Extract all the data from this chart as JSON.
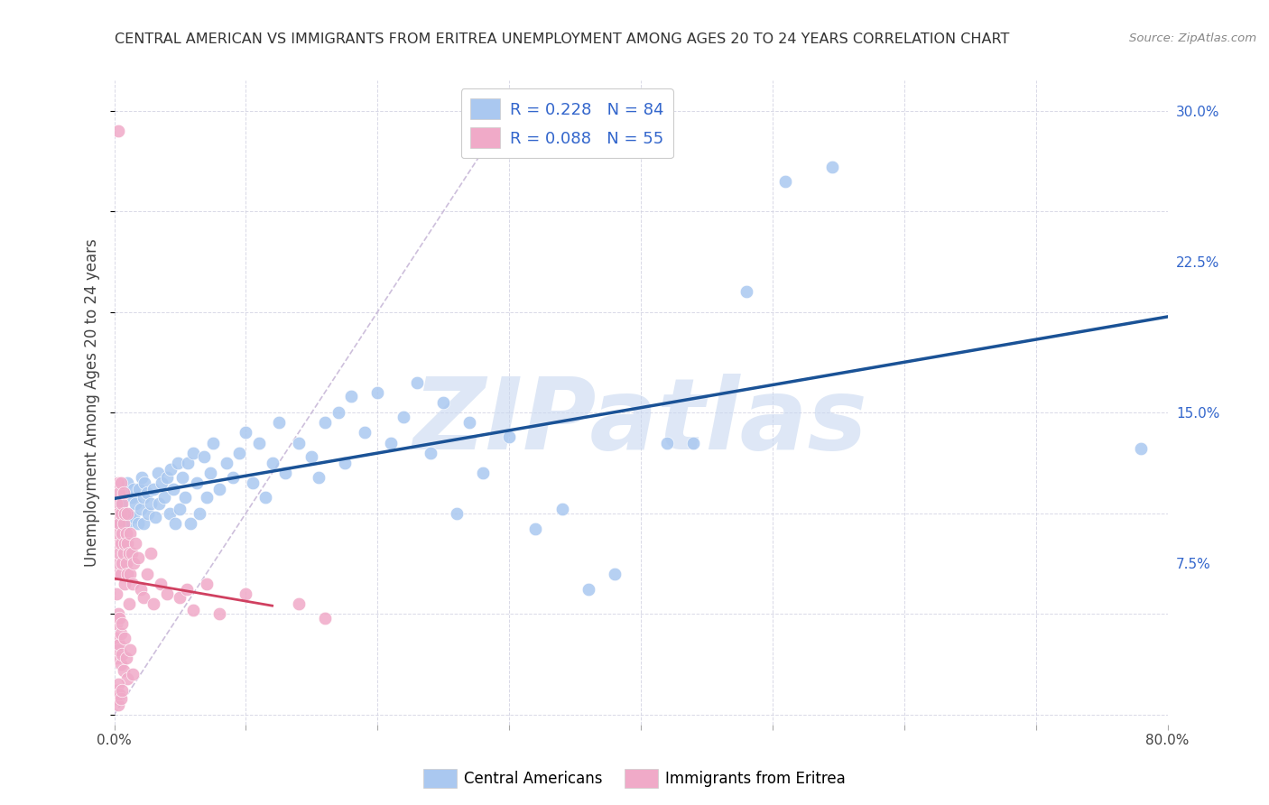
{
  "title": "CENTRAL AMERICAN VS IMMIGRANTS FROM ERITREA UNEMPLOYMENT AMONG AGES 20 TO 24 YEARS CORRELATION CHART",
  "source": "Source: ZipAtlas.com",
  "ylabel": "Unemployment Among Ages 20 to 24 years",
  "xlim": [
    0.0,
    0.8
  ],
  "ylim": [
    -0.005,
    0.315
  ],
  "blue_R": 0.228,
  "blue_N": 84,
  "pink_R": 0.088,
  "pink_N": 55,
  "blue_color": "#aac8f0",
  "pink_color": "#f0aac8",
  "blue_line_color": "#1a5296",
  "pink_line_color": "#d04060",
  "dashed_line_color": "#c8b8d8",
  "watermark": "ZIPatlas",
  "watermark_color": "#c8d8f0",
  "blue_scatter_x": [
    0.003,
    0.005,
    0.007,
    0.008,
    0.01,
    0.01,
    0.012,
    0.013,
    0.015,
    0.015,
    0.016,
    0.018,
    0.019,
    0.02,
    0.021,
    0.022,
    0.022,
    0.023,
    0.025,
    0.026,
    0.028,
    0.03,
    0.031,
    0.033,
    0.034,
    0.036,
    0.038,
    0.04,
    0.042,
    0.043,
    0.045,
    0.046,
    0.048,
    0.05,
    0.052,
    0.054,
    0.056,
    0.058,
    0.06,
    0.063,
    0.065,
    0.068,
    0.07,
    0.073,
    0.075,
    0.08,
    0.085,
    0.09,
    0.095,
    0.1,
    0.105,
    0.11,
    0.115,
    0.12,
    0.125,
    0.13,
    0.14,
    0.15,
    0.155,
    0.16,
    0.17,
    0.175,
    0.18,
    0.19,
    0.2,
    0.21,
    0.22,
    0.23,
    0.24,
    0.25,
    0.26,
    0.27,
    0.28,
    0.3,
    0.32,
    0.34,
    0.36,
    0.38,
    0.42,
    0.44,
    0.48,
    0.51,
    0.545,
    0.78
  ],
  "blue_scatter_y": [
    0.095,
    0.105,
    0.1,
    0.11,
    0.095,
    0.115,
    0.1,
    0.108,
    0.098,
    0.112,
    0.105,
    0.095,
    0.112,
    0.102,
    0.118,
    0.095,
    0.108,
    0.115,
    0.11,
    0.1,
    0.105,
    0.112,
    0.098,
    0.12,
    0.105,
    0.115,
    0.108,
    0.118,
    0.1,
    0.122,
    0.112,
    0.095,
    0.125,
    0.102,
    0.118,
    0.108,
    0.125,
    0.095,
    0.13,
    0.115,
    0.1,
    0.128,
    0.108,
    0.12,
    0.135,
    0.112,
    0.125,
    0.118,
    0.13,
    0.14,
    0.115,
    0.135,
    0.108,
    0.125,
    0.145,
    0.12,
    0.135,
    0.128,
    0.118,
    0.145,
    0.15,
    0.125,
    0.158,
    0.14,
    0.16,
    0.135,
    0.148,
    0.165,
    0.13,
    0.155,
    0.1,
    0.145,
    0.12,
    0.138,
    0.092,
    0.102,
    0.062,
    0.07,
    0.135,
    0.135,
    0.21,
    0.265,
    0.272,
    0.132
  ],
  "pink_scatter_x": [
    0.001,
    0.001,
    0.002,
    0.002,
    0.002,
    0.003,
    0.003,
    0.003,
    0.003,
    0.004,
    0.004,
    0.004,
    0.005,
    0.005,
    0.005,
    0.005,
    0.006,
    0.006,
    0.006,
    0.007,
    0.007,
    0.007,
    0.008,
    0.008,
    0.008,
    0.009,
    0.009,
    0.01,
    0.01,
    0.01,
    0.011,
    0.011,
    0.012,
    0.012,
    0.013,
    0.014,
    0.015,
    0.016,
    0.018,
    0.02,
    0.022,
    0.025,
    0.028,
    0.03,
    0.035,
    0.04,
    0.05,
    0.055,
    0.06,
    0.07,
    0.08,
    0.1,
    0.14,
    0.16,
    0.003
  ],
  "pink_scatter_y": [
    0.07,
    0.095,
    0.06,
    0.085,
    0.105,
    0.075,
    0.09,
    0.1,
    0.115,
    0.08,
    0.095,
    0.11,
    0.07,
    0.085,
    0.1,
    0.115,
    0.075,
    0.09,
    0.105,
    0.08,
    0.095,
    0.11,
    0.065,
    0.085,
    0.1,
    0.075,
    0.09,
    0.07,
    0.085,
    0.1,
    0.08,
    0.055,
    0.07,
    0.09,
    0.08,
    0.065,
    0.075,
    0.085,
    0.078,
    0.062,
    0.058,
    0.07,
    0.08,
    0.055,
    0.065,
    0.06,
    0.058,
    0.062,
    0.052,
    0.065,
    0.05,
    0.06,
    0.055,
    0.048,
    0.29
  ],
  "pink_extra_low_x": [
    0.001,
    0.002,
    0.002,
    0.003,
    0.003,
    0.004,
    0.004,
    0.005,
    0.005,
    0.006,
    0.006,
    0.007,
    0.008,
    0.009,
    0.01,
    0.012,
    0.014
  ],
  "pink_extra_low_y": [
    0.038,
    0.028,
    0.045,
    0.032,
    0.05,
    0.035,
    0.048,
    0.025,
    0.04,
    0.03,
    0.045,
    0.022,
    0.038,
    0.028,
    0.018,
    0.032,
    0.02
  ],
  "pink_very_low_x": [
    0.001,
    0.002,
    0.003,
    0.003,
    0.004,
    0.005,
    0.006
  ],
  "pink_very_low_y": [
    0.008,
    0.012,
    0.005,
    0.015,
    0.01,
    0.008,
    0.012
  ]
}
